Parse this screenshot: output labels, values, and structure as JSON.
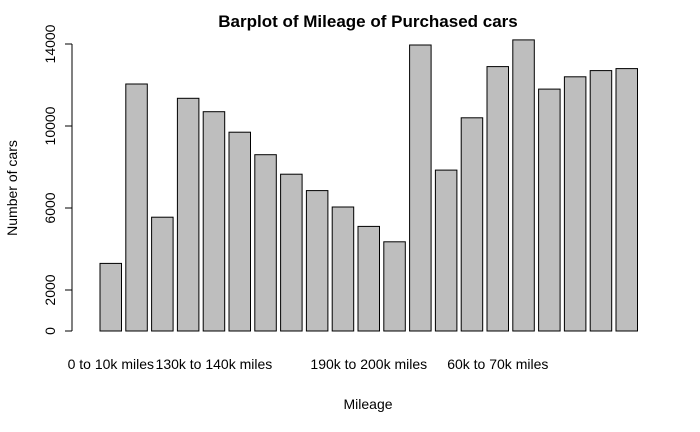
{
  "chart_data": {
    "type": "bar",
    "title": "Barplot of Mileage of Purchased cars",
    "xlabel": "Mileage",
    "ylabel": "Number of cars",
    "ylim": [
      0,
      14000
    ],
    "yticks": [
      0,
      2000,
      6000,
      10000,
      14000
    ],
    "categories": [
      "0 to 10k miles",
      "",
      "",
      "",
      "130k to 140k miles",
      "",
      "",
      "",
      "",
      "",
      "190k to 200k miles",
      "",
      "",
      "",
      "",
      "60k to 70k miles",
      "",
      "",
      "",
      "",
      ""
    ],
    "values": [
      3300,
      12050,
      5550,
      11350,
      10700,
      9700,
      8600,
      7650,
      6850,
      6050,
      5100,
      4350,
      13950,
      7850,
      10400,
      12900,
      14200,
      11800,
      12400,
      12700,
      12800
    ],
    "grid": false,
    "bar_color": "#bebebe",
    "border_color": "#000000"
  }
}
